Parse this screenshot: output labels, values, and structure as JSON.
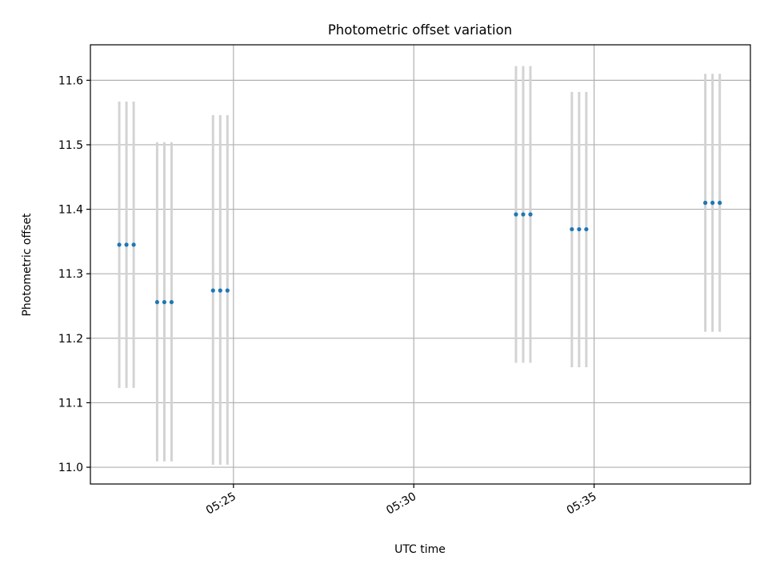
{
  "chart_data": {
    "type": "scatter",
    "title": "Photometric offset variation",
    "xlabel": "UTC time",
    "ylabel": "Photometric offset",
    "x_ticks": [
      "05:25",
      "05:30",
      "05:35"
    ],
    "y_ticks": [
      "11.0",
      "11.1",
      "11.2",
      "11.3",
      "11.4",
      "11.5",
      "11.6"
    ],
    "xlim": [
      "05:21:02",
      "05:39:20"
    ],
    "ylim": [
      10.974,
      11.655
    ],
    "grid": true,
    "series": [
      {
        "points": [
          {
            "x": "05:21:50",
            "y": 11.345,
            "low": 11.123,
            "high": 11.567
          },
          {
            "x": "05:22:02",
            "y": 11.345,
            "low": 11.123,
            "high": 11.567
          },
          {
            "x": "05:22:14",
            "y": 11.345,
            "low": 11.123,
            "high": 11.567
          },
          {
            "x": "05:22:53",
            "y": 11.256,
            "low": 11.009,
            "high": 11.504
          },
          {
            "x": "05:23:05",
            "y": 11.256,
            "low": 11.009,
            "high": 11.504
          },
          {
            "x": "05:23:17",
            "y": 11.256,
            "low": 11.009,
            "high": 11.504
          },
          {
            "x": "05:24:26",
            "y": 11.274,
            "low": 11.004,
            "high": 11.546
          },
          {
            "x": "05:24:38",
            "y": 11.274,
            "low": 11.004,
            "high": 11.546
          },
          {
            "x": "05:24:50",
            "y": 11.274,
            "low": 11.004,
            "high": 11.546
          },
          {
            "x": "05:32:50",
            "y": 11.392,
            "low": 11.162,
            "high": 11.622
          },
          {
            "x": "05:33:02",
            "y": 11.392,
            "low": 11.162,
            "high": 11.622
          },
          {
            "x": "05:33:14",
            "y": 11.392,
            "low": 11.162,
            "high": 11.622
          },
          {
            "x": "05:34:23",
            "y": 11.369,
            "low": 11.155,
            "high": 11.582
          },
          {
            "x": "05:34:35",
            "y": 11.369,
            "low": 11.155,
            "high": 11.582
          },
          {
            "x": "05:34:47",
            "y": 11.369,
            "low": 11.155,
            "high": 11.582
          },
          {
            "x": "05:38:05",
            "y": 11.41,
            "low": 11.21,
            "high": 11.61
          },
          {
            "x": "05:38:17",
            "y": 11.41,
            "low": 11.21,
            "high": 11.61
          },
          {
            "x": "05:38:29",
            "y": 11.41,
            "low": 11.21,
            "high": 11.61
          }
        ]
      }
    ],
    "colors": {
      "point": "#1f77b4",
      "errorbar": "#d3d3d3",
      "grid": "#b0b0b0"
    }
  }
}
